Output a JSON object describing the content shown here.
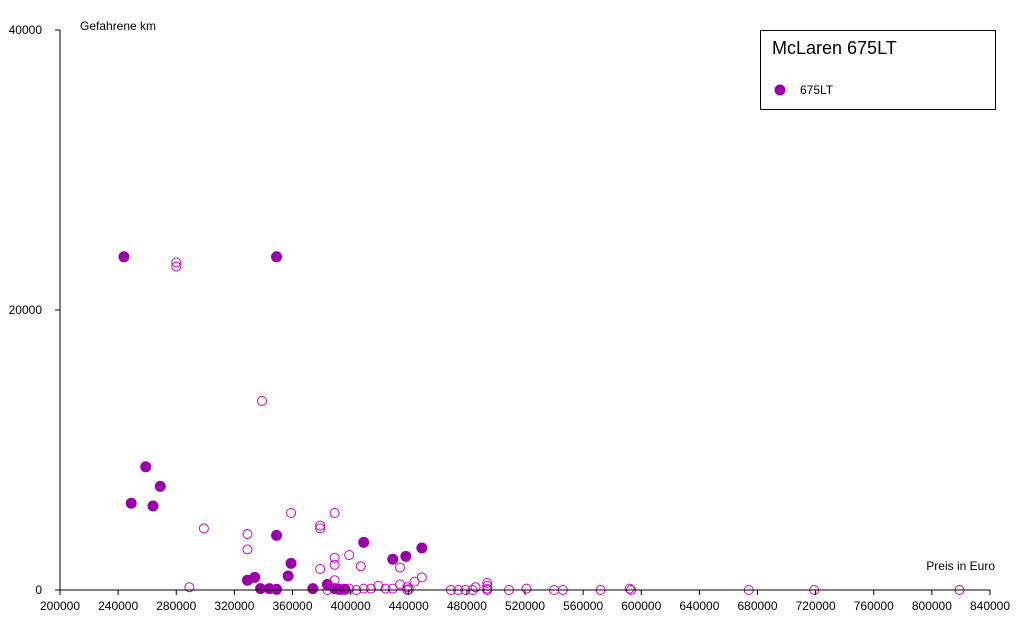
{
  "colors": {
    "marker": "#9900aa",
    "hollow_marker": "#cc00cc",
    "axis": "#000000",
    "background": "#ffffff"
  },
  "chart_data": {
    "type": "scatter",
    "title": "McLaren 675LT",
    "xlabel": "Preis in Euro",
    "ylabel": "Gefahrene km",
    "xlim": [
      200000,
      840000
    ],
    "ylim": [
      0,
      40000
    ],
    "x_ticks": [
      "200000",
      "240000",
      "280000",
      "320000",
      "360000",
      "400000",
      "440000",
      "480000",
      "520000",
      "560000",
      "600000",
      "640000",
      "680000",
      "720000",
      "760000",
      "800000",
      "840000"
    ],
    "y_ticks": [
      "0",
      "20000",
      "40000"
    ],
    "legend": {
      "placement": "top-right",
      "entries": [
        "675LT"
      ]
    },
    "grid": false,
    "series": [
      {
        "name": "675LT",
        "marker": "filled",
        "points": [
          [
            244000,
            23800
          ],
          [
            349000,
            23800
          ],
          [
            259000,
            8800
          ],
          [
            269000,
            7400
          ],
          [
            249000,
            6200
          ],
          [
            264000,
            6000
          ],
          [
            409000,
            3400
          ],
          [
            349000,
            3900
          ],
          [
            449000,
            3000
          ],
          [
            438000,
            2400
          ],
          [
            429000,
            2200
          ],
          [
            359000,
            1900
          ],
          [
            334000,
            900
          ],
          [
            357000,
            1000
          ],
          [
            329000,
            700
          ],
          [
            384000,
            400
          ],
          [
            338000,
            100
          ],
          [
            344000,
            100
          ],
          [
            349000,
            50
          ],
          [
            374000,
            100
          ],
          [
            389000,
            100
          ],
          [
            392000,
            50
          ],
          [
            396000,
            50
          ]
        ]
      },
      {
        "name": "",
        "marker": "hollow",
        "points": [
          [
            280000,
            23400
          ],
          [
            280000,
            23100
          ],
          [
            339000,
            13500
          ],
          [
            359000,
            5500
          ],
          [
            389000,
            5500
          ],
          [
            379000,
            4600
          ],
          [
            379000,
            4400
          ],
          [
            299000,
            4400
          ],
          [
            329000,
            4000
          ],
          [
            329000,
            2900
          ],
          [
            399000,
            2500
          ],
          [
            389000,
            2300
          ],
          [
            389000,
            1800
          ],
          [
            407000,
            1700
          ],
          [
            379000,
            1500
          ],
          [
            434000,
            1600
          ],
          [
            449000,
            900
          ],
          [
            444000,
            600
          ],
          [
            389000,
            700
          ],
          [
            434000,
            400
          ],
          [
            419000,
            300
          ],
          [
            439000,
            200
          ],
          [
            289000,
            200
          ],
          [
            494000,
            500
          ],
          [
            494000,
            300
          ],
          [
            494000,
            100
          ],
          [
            494000,
            0
          ],
          [
            486000,
            200
          ],
          [
            399000,
            100
          ],
          [
            409000,
            100
          ],
          [
            414000,
            100
          ],
          [
            424000,
            100
          ],
          [
            429000,
            100
          ],
          [
            404000,
            0
          ],
          [
            384000,
            0
          ],
          [
            394000,
            0
          ],
          [
            439000,
            0
          ],
          [
            440000,
            50
          ],
          [
            469000,
            0
          ],
          [
            474000,
            0
          ],
          [
            479000,
            0
          ],
          [
            484000,
            0
          ],
          [
            509000,
            0
          ],
          [
            521000,
            100
          ],
          [
            540000,
            0
          ],
          [
            546000,
            0
          ],
          [
            572000,
            0
          ],
          [
            592000,
            100
          ],
          [
            593000,
            0
          ],
          [
            674000,
            0
          ],
          [
            719000,
            0
          ],
          [
            819000,
            0
          ]
        ]
      }
    ]
  }
}
